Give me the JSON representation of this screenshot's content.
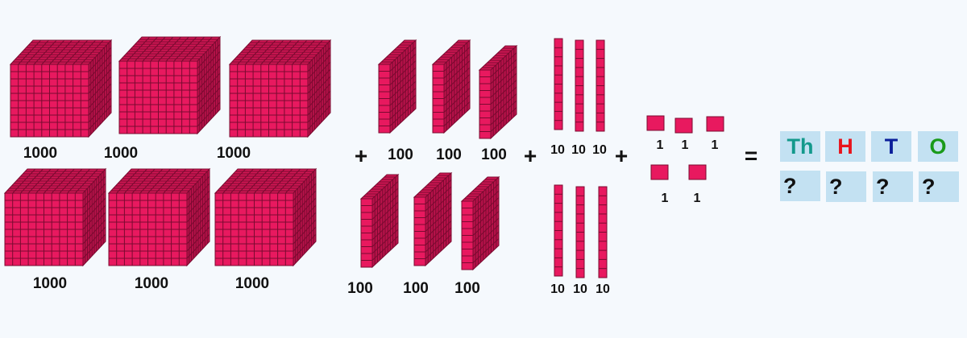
{
  "labels": {
    "thousands": [
      "1000",
      "1000",
      "1000",
      "1000",
      "1000",
      "1000"
    ],
    "hundreds": [
      "100",
      "100",
      "100",
      "100",
      "100",
      "100"
    ],
    "tens": [
      "10",
      "10",
      "10",
      "10",
      "10",
      "10"
    ],
    "ones": [
      "1",
      "1",
      "1",
      "1",
      "1"
    ]
  },
  "operators": {
    "plus": "+",
    "equals": "="
  },
  "place_value_table": {
    "headers": [
      {
        "label": "Th",
        "color": "#13998c"
      },
      {
        "label": "H",
        "color": "#e8141c"
      },
      {
        "label": "T",
        "color": "#0b1e9a"
      },
      {
        "label": "O",
        "color": "#1a9a1a"
      }
    ],
    "answers": [
      "?",
      "?",
      "?",
      "?"
    ]
  },
  "colors": {
    "block": "#e8195f",
    "grid": "#7a0a30",
    "cell_bg": "#c3e1f2"
  }
}
